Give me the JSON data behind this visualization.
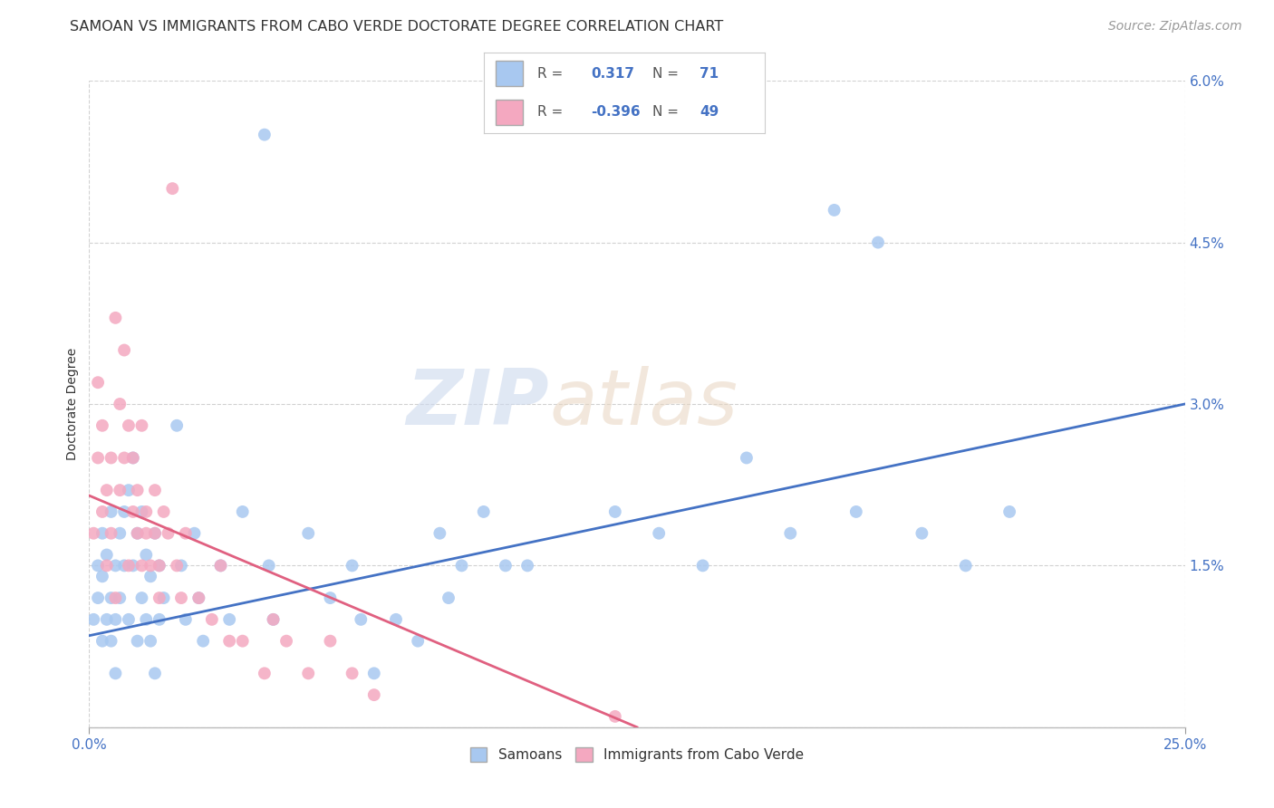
{
  "title": "SAMOAN VS IMMIGRANTS FROM CABO VERDE DOCTORATE DEGREE CORRELATION CHART",
  "source": "Source: ZipAtlas.com",
  "ylabel": "Doctorate Degree",
  "x_min": 0.0,
  "x_max": 0.25,
  "y_min": 0.0,
  "y_max": 0.06,
  "x_ticks": [
    0.0,
    0.25
  ],
  "x_tick_labels": [
    "0.0%",
    "25.0%"
  ],
  "y_ticks": [
    0.0,
    0.015,
    0.03,
    0.045,
    0.06
  ],
  "y_tick_labels": [
    "",
    "1.5%",
    "3.0%",
    "4.5%",
    "6.0%"
  ],
  "samoans_color": "#a8c8f0",
  "cabo_verde_color": "#f4a8c0",
  "samoans_line_color": "#4472c4",
  "cabo_verde_line_color": "#e06080",
  "samoans_R": "0.317",
  "samoans_N": "71",
  "cabo_verde_R": "-0.396",
  "cabo_verde_N": "49",
  "legend_label_samoans": "Samoans",
  "legend_label_cabo_verde": "Immigrants from Cabo Verde",
  "watermark_zip": "ZIP",
  "watermark_atlas": "atlas",
  "samoans_x": [
    0.001,
    0.002,
    0.002,
    0.003,
    0.003,
    0.003,
    0.004,
    0.004,
    0.005,
    0.005,
    0.005,
    0.006,
    0.006,
    0.006,
    0.007,
    0.007,
    0.008,
    0.008,
    0.009,
    0.009,
    0.01,
    0.01,
    0.011,
    0.011,
    0.012,
    0.012,
    0.013,
    0.013,
    0.014,
    0.014,
    0.015,
    0.015,
    0.016,
    0.016,
    0.017,
    0.02,
    0.021,
    0.022,
    0.024,
    0.025,
    0.026,
    0.03,
    0.032,
    0.035,
    0.04,
    0.041,
    0.042,
    0.05,
    0.055,
    0.06,
    0.062,
    0.065,
    0.07,
    0.075,
    0.08,
    0.082,
    0.085,
    0.09,
    0.095,
    0.1,
    0.12,
    0.13,
    0.14,
    0.15,
    0.16,
    0.17,
    0.175,
    0.18,
    0.19,
    0.2,
    0.21
  ],
  "samoans_y": [
    0.01,
    0.015,
    0.012,
    0.018,
    0.014,
    0.008,
    0.016,
    0.01,
    0.02,
    0.012,
    0.008,
    0.015,
    0.01,
    0.005,
    0.018,
    0.012,
    0.02,
    0.015,
    0.022,
    0.01,
    0.025,
    0.015,
    0.018,
    0.008,
    0.02,
    0.012,
    0.016,
    0.01,
    0.014,
    0.008,
    0.018,
    0.005,
    0.015,
    0.01,
    0.012,
    0.028,
    0.015,
    0.01,
    0.018,
    0.012,
    0.008,
    0.015,
    0.01,
    0.02,
    0.055,
    0.015,
    0.01,
    0.018,
    0.012,
    0.015,
    0.01,
    0.005,
    0.01,
    0.008,
    0.018,
    0.012,
    0.015,
    0.02,
    0.015,
    0.015,
    0.02,
    0.018,
    0.015,
    0.025,
    0.018,
    0.048,
    0.02,
    0.045,
    0.018,
    0.015,
    0.02
  ],
  "cabo_verde_x": [
    0.001,
    0.002,
    0.002,
    0.003,
    0.003,
    0.004,
    0.004,
    0.005,
    0.005,
    0.006,
    0.006,
    0.007,
    0.007,
    0.008,
    0.008,
    0.009,
    0.009,
    0.01,
    0.01,
    0.011,
    0.011,
    0.012,
    0.012,
    0.013,
    0.013,
    0.014,
    0.015,
    0.015,
    0.016,
    0.016,
    0.017,
    0.018,
    0.019,
    0.02,
    0.021,
    0.022,
    0.025,
    0.028,
    0.03,
    0.032,
    0.035,
    0.04,
    0.042,
    0.045,
    0.05,
    0.055,
    0.06,
    0.065,
    0.12
  ],
  "cabo_verde_y": [
    0.018,
    0.032,
    0.025,
    0.028,
    0.02,
    0.022,
    0.015,
    0.025,
    0.018,
    0.038,
    0.012,
    0.03,
    0.022,
    0.025,
    0.035,
    0.028,
    0.015,
    0.02,
    0.025,
    0.022,
    0.018,
    0.028,
    0.015,
    0.02,
    0.018,
    0.015,
    0.022,
    0.018,
    0.012,
    0.015,
    0.02,
    0.018,
    0.05,
    0.015,
    0.012,
    0.018,
    0.012,
    0.01,
    0.015,
    0.008,
    0.008,
    0.005,
    0.01,
    0.008,
    0.005,
    0.008,
    0.005,
    0.003,
    0.001
  ],
  "samoans_line_x0": 0.0,
  "samoans_line_y0": 0.0085,
  "samoans_line_x1": 0.25,
  "samoans_line_y1": 0.03,
  "cabo_verde_line_x0": 0.0,
  "cabo_verde_line_y0": 0.0215,
  "cabo_verde_line_x1": 0.125,
  "cabo_verde_line_y1": 0.0,
  "title_fontsize": 11.5,
  "axis_label_fontsize": 10,
  "tick_fontsize": 11,
  "source_fontsize": 10,
  "legend_fontsize": 11,
  "background_color": "#ffffff",
  "grid_color": "#cccccc",
  "title_color": "#333333",
  "axis_tick_color": "#4472c4"
}
